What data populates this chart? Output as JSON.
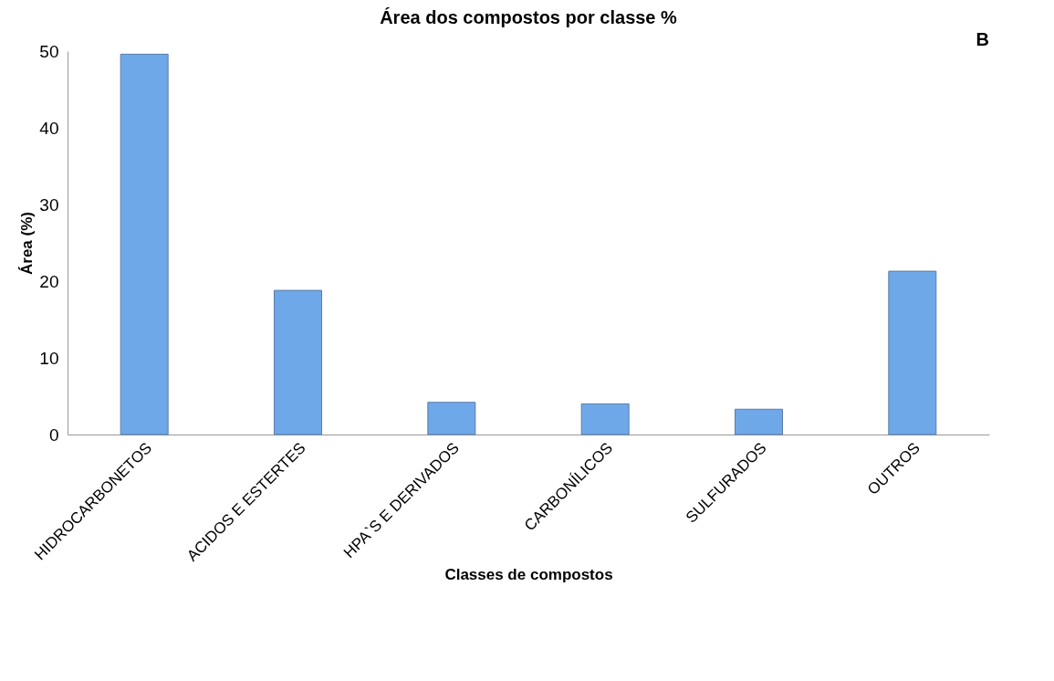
{
  "chart_data": {
    "type": "bar",
    "title": "Área dos compostos por classe %",
    "xlabel": "Classes de compostos",
    "ylabel": "Área (%)",
    "annotations": [
      "B"
    ],
    "categories": [
      "HIDROCARBONETOS",
      "ACIDOS E ESTERTES",
      "HPA`S E DERIVADOS",
      "CARBONÍLICOS",
      "SULFURADOS",
      "OUTROS"
    ],
    "values": [
      49.6,
      18.8,
      4.2,
      4.0,
      3.3,
      21.3
    ],
    "color": "#6fa8e8",
    "ylim": [
      0,
      50
    ],
    "yticks": [
      0,
      10,
      20,
      30,
      40,
      50
    ],
    "grid": false
  }
}
